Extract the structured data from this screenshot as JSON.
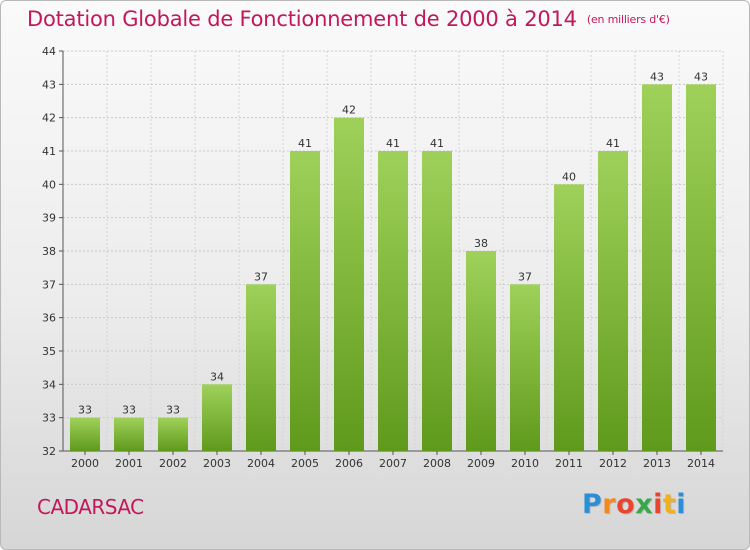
{
  "header": {
    "title": "Dotation Globale de Fonctionnement de 2000 à 2014",
    "unit": "(en milliers d'€)"
  },
  "footer": {
    "commune": "CADARSAC",
    "brand_letters": [
      "P",
      "r",
      "o",
      "x",
      "i",
      "t",
      "i"
    ],
    "brand_colors": [
      "#2a8fd6",
      "#f08a1c",
      "#e8442e",
      "#3aa84a",
      "#e8442e",
      "#f0b21c",
      "#2a8fd6"
    ]
  },
  "colors": {
    "title": "#c2185b",
    "bar_top": "#9fd15a",
    "bar_bottom": "#5f9a1c"
  },
  "chart_data": {
    "type": "bar",
    "title": "Dotation Globale de Fonctionnement de 2000 à 2014",
    "xlabel": "",
    "ylabel": "",
    "categories": [
      "2000",
      "2001",
      "2002",
      "2003",
      "2004",
      "2005",
      "2006",
      "2007",
      "2008",
      "2009",
      "2010",
      "2011",
      "2012",
      "2013",
      "2014"
    ],
    "values": [
      33,
      33,
      33,
      34,
      37,
      41,
      42,
      41,
      41,
      38,
      37,
      40,
      41,
      43,
      43
    ],
    "data_labels": [
      "33",
      "33",
      "33",
      "34",
      "37",
      "41",
      "42",
      "41",
      "41",
      "38",
      "37",
      "40",
      "41",
      "43",
      "43"
    ],
    "ylim": [
      32,
      44
    ],
    "yticks": [
      32,
      33,
      34,
      35,
      36,
      37,
      38,
      39,
      40,
      41,
      42,
      43,
      44
    ],
    "grid": true,
    "legend": "none"
  }
}
